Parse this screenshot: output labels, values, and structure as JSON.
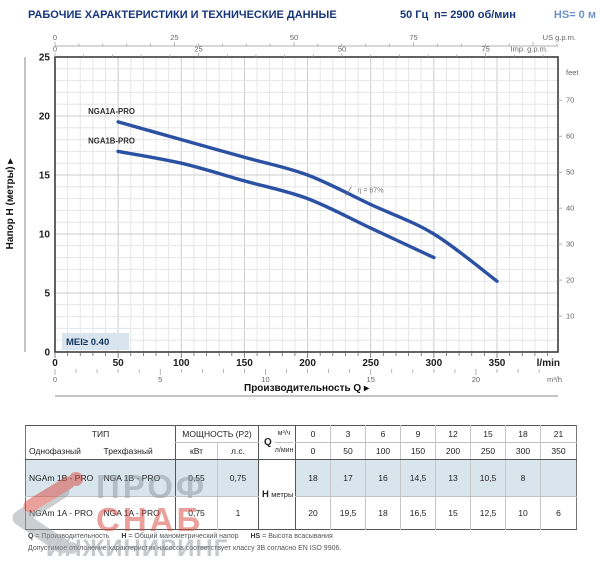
{
  "header": {
    "title": "РАБОЧИЕ ХАРАКТЕРИСТИКИ И ТЕХНИЧЕСКИЕ ДАННЫЕ",
    "frequency": "50 Гц",
    "speed": "n= 2900 об/мин",
    "suction": "HS= 0 м"
  },
  "chart_data": {
    "type": "line",
    "xlabel": "Производительность Q  ▸",
    "ylabel": "Напор H (метры)  ▸",
    "x_unit": "l/min",
    "x2_unit": "m³/h",
    "y2_unit": "feet",
    "top_units": [
      "US g.p.m.",
      "Imp. g.p.m."
    ],
    "xlim_lmin": [
      0,
      398
    ],
    "ylim_m": [
      0,
      25
    ],
    "x_ticks_lmin": [
      0,
      50,
      100,
      150,
      200,
      250,
      300,
      350
    ],
    "x_ticks_m3h": [
      0,
      5,
      10,
      15,
      20
    ],
    "y_ticks_m": [
      0,
      5,
      10,
      15,
      20,
      25
    ],
    "y_ticks_feet": [
      10,
      20,
      30,
      40,
      50,
      60,
      70
    ],
    "x_ticks_usgpm": [
      0,
      25,
      50,
      75
    ],
    "x_ticks_impgpm": [
      0,
      25,
      50,
      75
    ],
    "series": [
      {
        "name": "NGA1A-PRO",
        "x_lmin": [
          50,
          100,
          150,
          200,
          250,
          300,
          350
        ],
        "y_m": [
          19.5,
          18,
          16.5,
          15,
          12.5,
          10,
          6
        ]
      },
      {
        "name": "NGA1B-PRO",
        "x_lmin": [
          50,
          100,
          150,
          200,
          250,
          300
        ],
        "y_m": [
          17,
          16,
          14.5,
          13,
          10.5,
          8
        ]
      }
    ],
    "efficiency_label": {
      "text": "η = 67%",
      "x_lmin": 238,
      "y_m": 13.5
    },
    "mei_label": "MEI≥ 0.40",
    "colors": {
      "curve": "#2b51a3",
      "grid_minor": "#e6e6e6",
      "grid_major": "#cccccc",
      "frame": "#3c3c3c",
      "mei_bg": "#d8e5ee"
    }
  },
  "table": {
    "type_header": "ТИП",
    "power_header": "МОЩНОСТЬ (P2)",
    "col_single": "Однофазный",
    "col_three": "Трехфазный",
    "col_kw": "кВт",
    "col_hp": "л.с.",
    "q_label": "Q",
    "q_unit_m3h": "м³/ч",
    "q_unit_lmin": "л/мин",
    "h_label": "H",
    "h_unit": "метры",
    "q_m3h": [
      "0",
      "3",
      "6",
      "9",
      "12",
      "15",
      "18",
      "21"
    ],
    "q_lmin": [
      "0",
      "50",
      "100",
      "150",
      "200",
      "250",
      "300",
      "350"
    ],
    "rows": [
      {
        "single": "NGAm 1B - PRO",
        "three": "NGA 1B - PRO",
        "kw": "0,55",
        "hp": "0,75",
        "h": [
          "18",
          "17",
          "16",
          "14,5",
          "13",
          "10,5",
          "8",
          ""
        ]
      },
      {
        "single": "NGAm 1A - PRO",
        "three": "NGA 1A - PRO",
        "kw": "0,75",
        "hp": "1",
        "h": [
          "20",
          "19,5",
          "18",
          "16,5",
          "15",
          "12,5",
          "10",
          "6"
        ]
      }
    ]
  },
  "notes": {
    "q_key": "Q",
    "q_val": "= Производительность",
    "h_key": "H",
    "h_val": "= Общий манометрический напор",
    "hs_key": "HS",
    "hs_val": "= Высота всасывания",
    "line2": "Допустимое отклонение характеристик насосов соответствует классу 3B согласно EN ISO 9906."
  },
  "watermark": {
    "word1": "ПРОФ",
    "word2": "СНАБ",
    "word3": "ИНЖИНИРИНГ"
  }
}
